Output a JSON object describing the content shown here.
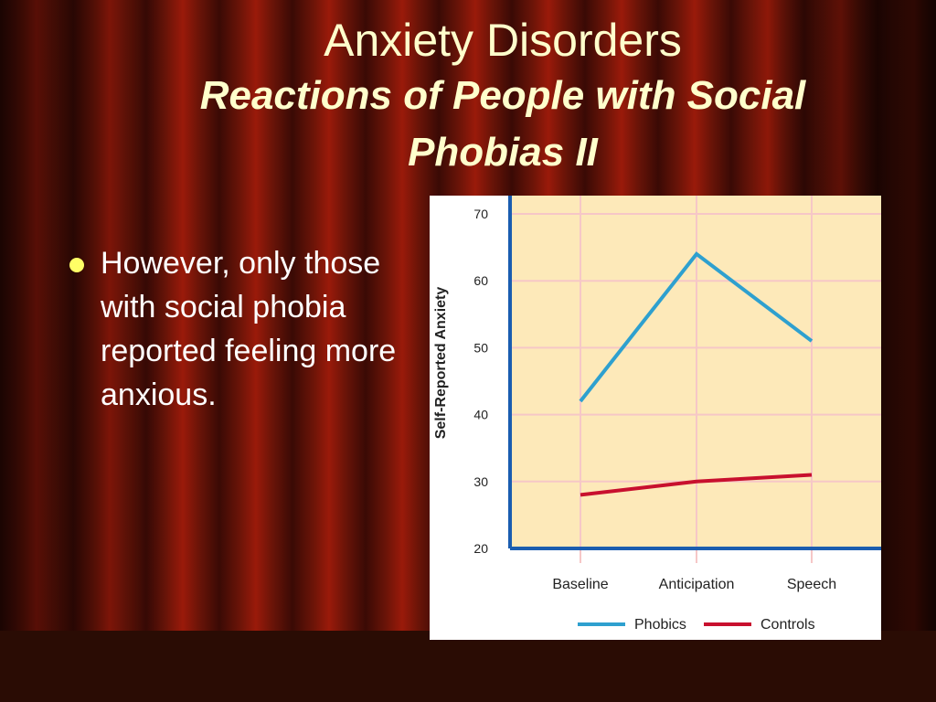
{
  "slide": {
    "title": "Anxiety Disorders",
    "subtitle_line1": "Reactions of People with Social",
    "subtitle_line2": "Phobias II",
    "bullets": [
      "However, only those with social phobia reported feeling more anxious."
    ]
  },
  "colors": {
    "plot_background": "#fde9b9",
    "axis": "#1a5db0",
    "grid": "#f6c7c7",
    "phobics": "#2ea0cf",
    "controls": "#c8102e",
    "title_text": "#ffffcc",
    "bullet_dot": "#ffff66"
  },
  "chart_data": {
    "type": "line",
    "categories": [
      "Baseline",
      "Anticipation",
      "Speech"
    ],
    "ylabel": "Self-Reported Anxiety",
    "xlabel": "",
    "ylim": [
      20,
      70
    ],
    "yticks": [
      20,
      30,
      40,
      50,
      60,
      70
    ],
    "grid": true,
    "legend_position": "bottom",
    "series": [
      {
        "name": "Phobics",
        "values": [
          42,
          64,
          51
        ]
      },
      {
        "name": "Controls",
        "values": [
          28,
          30,
          31
        ]
      }
    ]
  }
}
